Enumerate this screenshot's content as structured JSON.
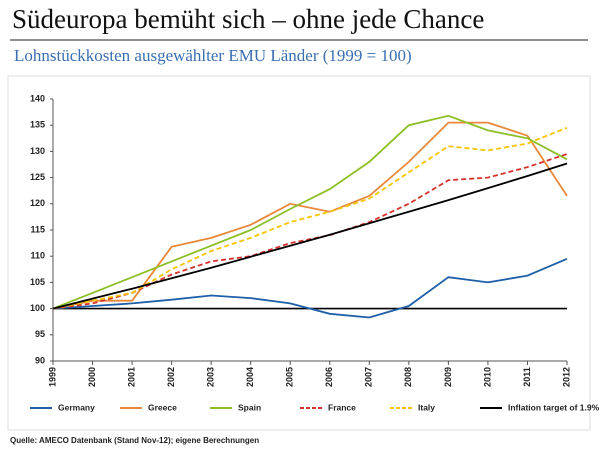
{
  "chart_data": {
    "type": "line",
    "title": "Südeuropa bemüht sich – ohne jede Chance",
    "subtitle": "Lohnstückkosten ausgewählter EMU Länder (1999 = 100)",
    "source": "Quelle:  AMECO Datenbank (Stand Nov-12); eigene Berechnungen",
    "categories": [
      "1999",
      "2000",
      "2001",
      "2002",
      "2003",
      "2004",
      "2005",
      "2006",
      "2007",
      "2008",
      "2009",
      "2010",
      "2011",
      "2012"
    ],
    "ylim": [
      90,
      140
    ],
    "yticks": [
      90,
      95,
      100,
      105,
      110,
      115,
      120,
      125,
      130,
      135,
      140
    ],
    "grid": false,
    "baseline": 100,
    "series": [
      {
        "name": "Germany",
        "color": "#1f5fa8",
        "dashed": false,
        "values": [
          100,
          100.5,
          101,
          101.7,
          102.5,
          102,
          101,
          99,
          98.3,
          100.5,
          106,
          105,
          106.3,
          109.5
        ]
      },
      {
        "name": "Greece",
        "color": "#e8883a",
        "dashed": false,
        "values": [
          100,
          101.5,
          101.5,
          111.8,
          113.5,
          116,
          120,
          118.5,
          121.5,
          128,
          135.5,
          135.5,
          133,
          121.5
        ]
      },
      {
        "name": "Spain",
        "color": "#8cbf26",
        "dashed": false,
        "values": [
          100,
          103,
          106,
          109,
          112,
          115,
          119,
          122.8,
          128,
          135,
          136.8,
          134,
          132.5,
          128.5
        ]
      },
      {
        "name": "France",
        "color": "#d6322b",
        "dashed": true,
        "values": [
          100,
          101,
          103,
          106.5,
          109,
          110,
          112.5,
          114,
          116.5,
          120,
          124.5,
          125,
          127,
          129.5
        ]
      },
      {
        "name": "Italy",
        "color": "#f5c400",
        "dashed": true,
        "values": [
          100,
          101.5,
          103,
          107.5,
          111,
          113.5,
          116.5,
          118.5,
          121,
          126,
          131,
          130.2,
          131.5,
          134.5
        ]
      },
      {
        "name": "Inflation target of 1.9%",
        "color": "#000000",
        "dashed": false,
        "values": [
          100,
          101.9,
          103.8,
          105.8,
          107.8,
          109.9,
          112,
          114.1,
          116.3,
          118.5,
          120.7,
          123,
          125.3,
          127.7
        ]
      }
    ]
  }
}
